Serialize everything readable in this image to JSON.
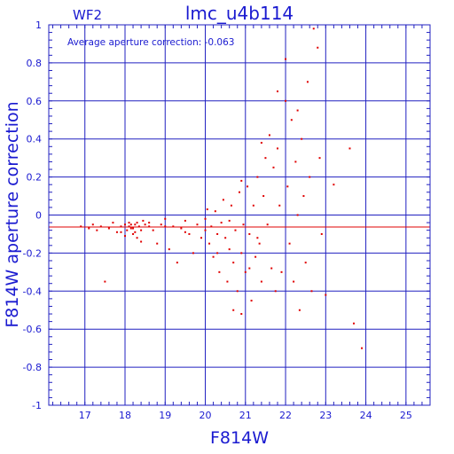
{
  "chart_data": {
    "type": "scatter",
    "title": "lmc_u4b114",
    "chip_label": "WF2",
    "annotation": "Average aperture correction: -0.063",
    "xlabel": "F814W",
    "ylabel": "F814W aperture correction",
    "xlim": [
      16.1,
      25.6
    ],
    "ylim": [
      -1,
      1
    ],
    "x_ticks": [
      "17",
      "18",
      "19",
      "20",
      "21",
      "22",
      "23",
      "24",
      "25"
    ],
    "y_ticks": [
      "1",
      "0.8",
      "0.6",
      "0.4",
      "0.2",
      "0",
      "-0.2",
      "-0.4",
      "-0.6",
      "-0.8",
      "-1"
    ],
    "grid": true,
    "average_line": -0.063,
    "colors": {
      "frame": "#2020c0",
      "text": "#1a1ad0",
      "points": "#e00000"
    },
    "series": [
      {
        "values": [
          [
            16.9,
            -0.06
          ],
          [
            17.1,
            -0.07
          ],
          [
            17.2,
            -0.05
          ],
          [
            17.3,
            -0.08
          ],
          [
            17.4,
            -0.06
          ],
          [
            17.5,
            -0.35
          ],
          [
            17.6,
            -0.07
          ],
          [
            17.7,
            -0.04
          ],
          [
            17.8,
            -0.09
          ],
          [
            17.9,
            -0.06
          ],
          [
            18.0,
            -0.05
          ],
          [
            18.05,
            -0.08
          ],
          [
            18.1,
            -0.04
          ],
          [
            18.15,
            -0.07
          ],
          [
            18.2,
            -0.1
          ],
          [
            18.25,
            -0.05
          ],
          [
            18.3,
            -0.12
          ],
          [
            18.35,
            -0.06
          ],
          [
            18.4,
            -0.14
          ],
          [
            18.45,
            -0.03
          ],
          [
            18.1,
            -0.06
          ],
          [
            18.2,
            -0.07
          ],
          [
            18.15,
            -0.05
          ],
          [
            18.25,
            -0.09
          ],
          [
            18.3,
            -0.04
          ],
          [
            18.0,
            -0.11
          ],
          [
            18.4,
            -0.08
          ],
          [
            18.5,
            -0.05
          ],
          [
            18.6,
            -0.06
          ],
          [
            18.7,
            -0.08
          ],
          [
            18.8,
            -0.15
          ],
          [
            18.9,
            -0.05
          ],
          [
            19.0,
            -0.02
          ],
          [
            19.1,
            -0.18
          ],
          [
            19.2,
            -0.06
          ],
          [
            19.3,
            -0.25
          ],
          [
            19.4,
            -0.07
          ],
          [
            19.5,
            -0.03
          ],
          [
            19.6,
            -0.1
          ],
          [
            19.7,
            -0.2
          ],
          [
            19.8,
            -0.05
          ],
          [
            19.9,
            -0.12
          ],
          [
            20.0,
            -0.08
          ],
          [
            20.0,
            -0.02
          ],
          [
            20.05,
            0.03
          ],
          [
            20.1,
            -0.15
          ],
          [
            20.15,
            -0.06
          ],
          [
            20.2,
            -0.22
          ],
          [
            20.25,
            0.02
          ],
          [
            20.3,
            -0.1
          ],
          [
            20.35,
            -0.3
          ],
          [
            20.4,
            -0.04
          ],
          [
            20.45,
            0.08
          ],
          [
            20.5,
            -0.12
          ],
          [
            20.55,
            -0.35
          ],
          [
            20.6,
            -0.18
          ],
          [
            20.65,
            0.05
          ],
          [
            20.7,
            -0.25
          ],
          [
            20.75,
            -0.08
          ],
          [
            20.8,
            -0.4
          ],
          [
            20.85,
            0.12
          ],
          [
            20.9,
            -0.2
          ],
          [
            20.95,
            -0.05
          ],
          [
            21.0,
            -0.3
          ],
          [
            21.05,
            0.15
          ],
          [
            21.1,
            -0.1
          ],
          [
            21.15,
            -0.45
          ],
          [
            21.2,
            0.05
          ],
          [
            21.25,
            -0.22
          ],
          [
            21.3,
            0.2
          ],
          [
            21.35,
            -0.15
          ],
          [
            21.4,
            -0.35
          ],
          [
            21.45,
            0.1
          ],
          [
            21.5,
            0.3
          ],
          [
            21.55,
            -0.05
          ],
          [
            21.6,
            0.42
          ],
          [
            21.65,
            -0.28
          ],
          [
            21.7,
            0.25
          ],
          [
            21.75,
            -0.4
          ],
          [
            21.8,
            0.35
          ],
          [
            21.85,
            0.05
          ],
          [
            21.9,
            -0.3
          ],
          [
            22.0,
            0.6
          ],
          [
            22.05,
            0.15
          ],
          [
            22.1,
            -0.15
          ],
          [
            22.15,
            0.5
          ],
          [
            22.2,
            -0.35
          ],
          [
            22.25,
            0.28
          ],
          [
            22.3,
            0.0
          ],
          [
            22.35,
            -0.5
          ],
          [
            22.4,
            0.4
          ],
          [
            22.45,
            0.1
          ],
          [
            22.5,
            -0.25
          ],
          [
            22.55,
            0.7
          ],
          [
            22.6,
            0.2
          ],
          [
            22.65,
            -0.4
          ],
          [
            22.7,
            0.98
          ],
          [
            22.8,
            0.88
          ],
          [
            22.85,
            0.3
          ],
          [
            22.9,
            -0.1
          ],
          [
            23.0,
            -0.42
          ],
          [
            23.2,
            0.16
          ],
          [
            23.6,
            0.35
          ],
          [
            23.7,
            -0.57
          ],
          [
            23.9,
            -0.7
          ],
          [
            22.0,
            0.82
          ],
          [
            21.8,
            0.65
          ],
          [
            22.3,
            0.55
          ],
          [
            21.4,
            0.38
          ],
          [
            20.9,
            0.18
          ],
          [
            19.5,
            -0.09
          ],
          [
            19.0,
            -0.06
          ],
          [
            18.6,
            -0.04
          ],
          [
            17.9,
            -0.09
          ],
          [
            20.7,
            -0.5
          ],
          [
            20.9,
            -0.52
          ],
          [
            21.3,
            -0.12
          ],
          [
            21.1,
            -0.28
          ],
          [
            20.3,
            -0.2
          ],
          [
            20.6,
            -0.03
          ]
        ]
      }
    ]
  }
}
